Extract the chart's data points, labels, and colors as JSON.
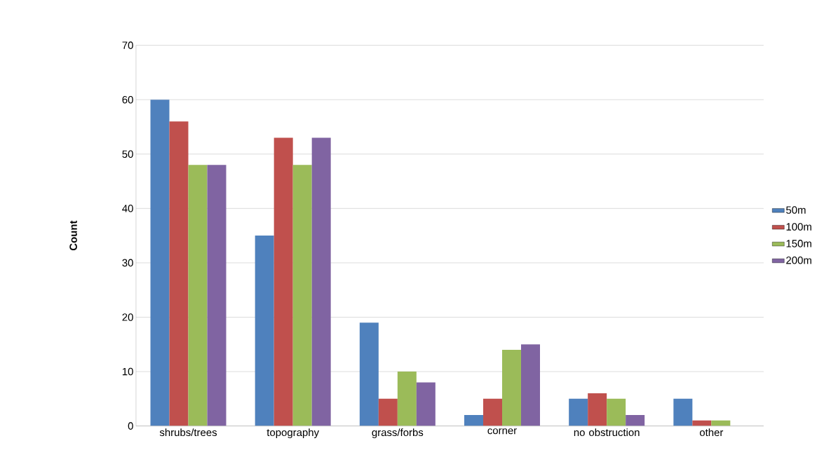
{
  "chart_data": {
    "type": "bar",
    "ylabel": "Count",
    "categories": [
      "shrubs/trees",
      "topography",
      "grass/forbs",
      "corner",
      "no obstruction",
      "other"
    ],
    "series": [
      {
        "name": "50m",
        "color": "#4f81bd",
        "values": [
          60,
          35,
          19,
          2,
          5,
          5
        ]
      },
      {
        "name": "100m",
        "color": "#c0504d",
        "values": [
          56,
          53,
          5,
          5,
          6,
          1
        ]
      },
      {
        "name": "150m",
        "color": "#9bbb59",
        "values": [
          48,
          48,
          10,
          14,
          5,
          1
        ]
      },
      {
        "name": "200m",
        "color": "#8064a2",
        "values": [
          48,
          53,
          8,
          15,
          2,
          0
        ]
      }
    ],
    "ylim": [
      0,
      70
    ],
    "yticks": [
      0,
      10,
      20,
      30,
      40,
      50,
      60,
      70
    ],
    "grid": "y",
    "legend": "right"
  }
}
